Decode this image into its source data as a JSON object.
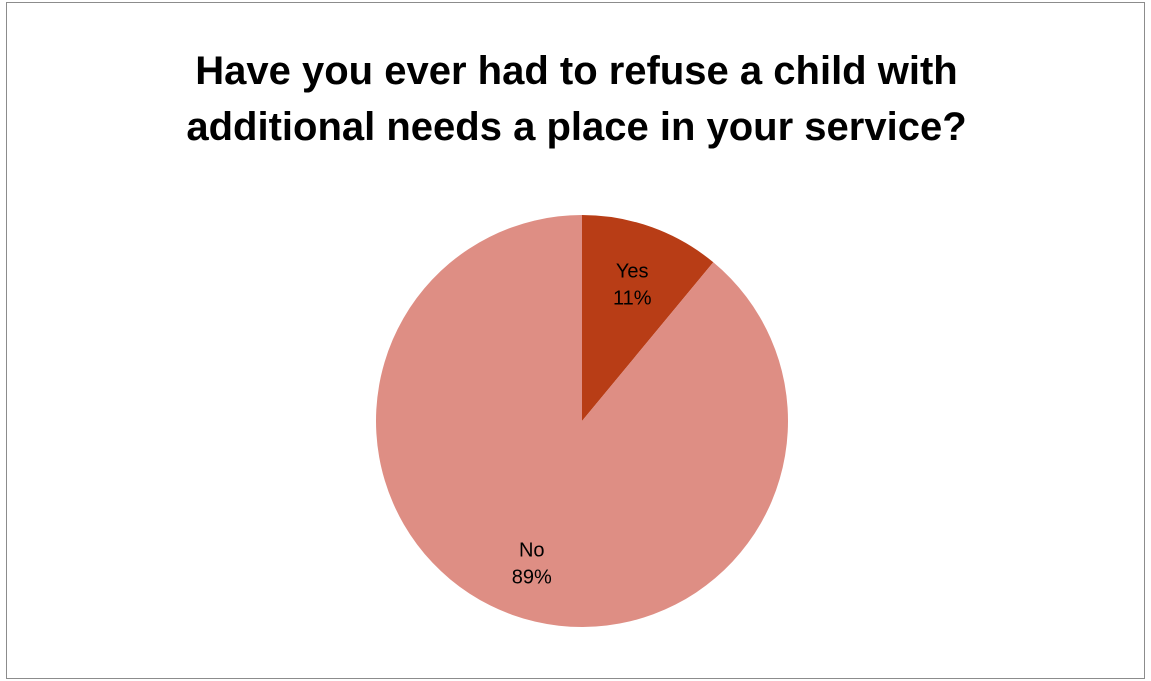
{
  "chart_data": {
    "type": "pie",
    "title_lines": [
      "Have you ever had to refuse a child with",
      "additional needs a place in your service?"
    ],
    "slices": [
      {
        "label": "Yes",
        "value": 11,
        "value_label": "11%",
        "color": "#B83D16"
      },
      {
        "label": "No",
        "value": 89,
        "value_label": "89%",
        "color": "#DE8E84"
      }
    ],
    "start_angle_deg": 0,
    "direction": "clockwise",
    "legend": "none"
  }
}
